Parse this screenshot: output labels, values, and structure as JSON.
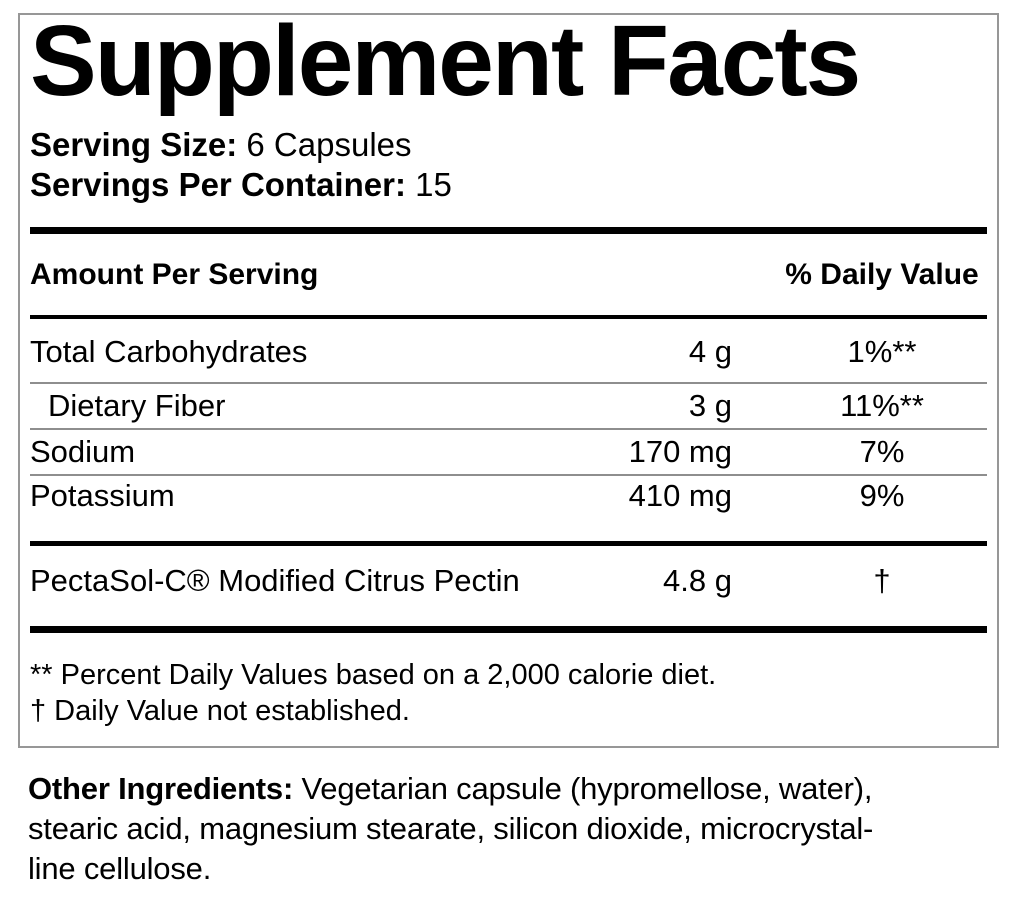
{
  "label": {
    "title": "Supplement Facts",
    "serving_size_label": "Serving Size:",
    "serving_size_value": "6 Capsules",
    "servings_per_container_label": "Servings Per Container:",
    "servings_per_container_value": "15",
    "header": {
      "amount_per_serving": "Amount Per Serving",
      "percent_daily_value": "% Daily Value"
    },
    "rows": [
      {
        "name": "Total Carbohydrates",
        "amount": "4 g",
        "daily_value": "1%**"
      },
      {
        "name": "Dietary Fiber",
        "amount": "3 g",
        "daily_value": "11%**"
      },
      {
        "name": "Sodium",
        "amount": "170 mg",
        "daily_value": "7%"
      },
      {
        "name": "Potassium",
        "amount": "410 mg",
        "daily_value": "9%"
      }
    ],
    "proprietary_row": {
      "name": "PectaSol-C® Modified Citrus Pectin",
      "amount": "4.8 g",
      "daily_value": "†"
    },
    "footnotes": {
      "daily_values": "** Percent Daily Values based on a 2,000 calorie diet.",
      "dagger": "† Daily Value not established."
    }
  },
  "other_ingredients": {
    "label": "Other Ingredients:",
    "line1_rest": " Vegetarian capsule (hypromellose, water),",
    "line2": "stearic acid, magnesium stearate, silicon dioxide, microcrystal-",
    "line3": "line cellulose."
  },
  "colors": {
    "text": "#000000",
    "thick_rule": "#000000",
    "thin_rule": "#8e8e8e",
    "box_border": "#979797",
    "background": "#ffffff"
  }
}
